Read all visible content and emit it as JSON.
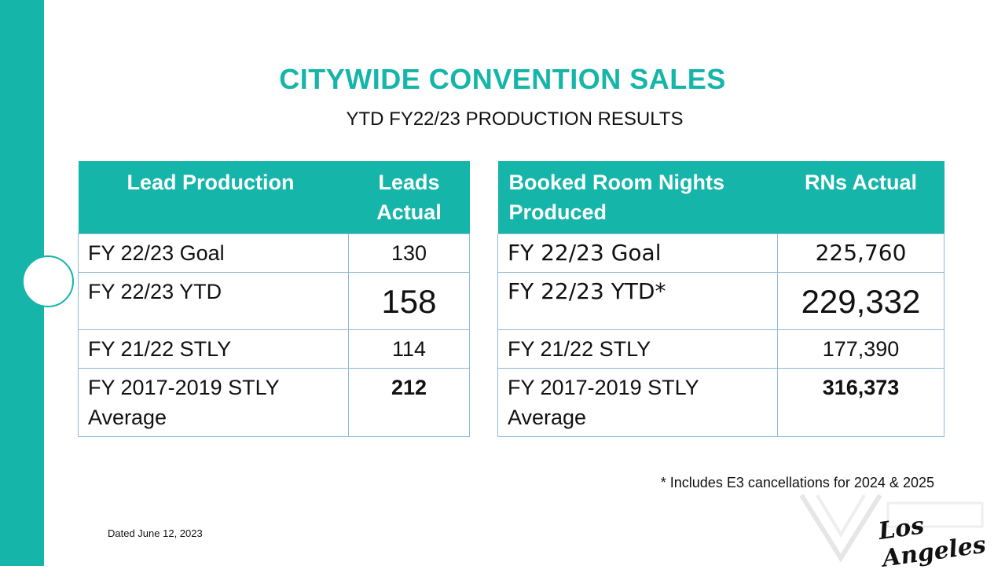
{
  "header": {
    "title": "CITYWIDE CONVENTION SALES",
    "subtitle": "YTD FY22/23 PRODUCTION RESULTS"
  },
  "lead_table": {
    "col1_header": "Lead Production",
    "col2_header": "Leads Actual",
    "rows": [
      {
        "label": "FY 22/23 Goal",
        "value": "130"
      },
      {
        "label": "FY 22/23 YTD",
        "value": "158"
      },
      {
        "label": "FY 21/22 STLY",
        "value": "114"
      },
      {
        "label": "FY 2017-2019 STLY Average",
        "value": "212"
      }
    ]
  },
  "room_table": {
    "col1_header": "Booked Room Nights Produced",
    "col2_header": "RNs Actual",
    "rows": [
      {
        "label": "FY 22/23 Goal",
        "value": "225,760"
      },
      {
        "label": "FY 22/23 YTD*",
        "value": "229,332"
      },
      {
        "label": "FY 21/22 STLY",
        "value": "177,390"
      },
      {
        "label": "FY 2017-2019 STLY Average",
        "value": "316,373"
      }
    ]
  },
  "footnote": "* Includes E3 cancellations for 2024 & 2025",
  "dated": "Dated June 12, 2023",
  "logo_text": "Los Angeles",
  "colors": {
    "accent": "#16b5a9",
    "border": "#8fb8d9"
  }
}
